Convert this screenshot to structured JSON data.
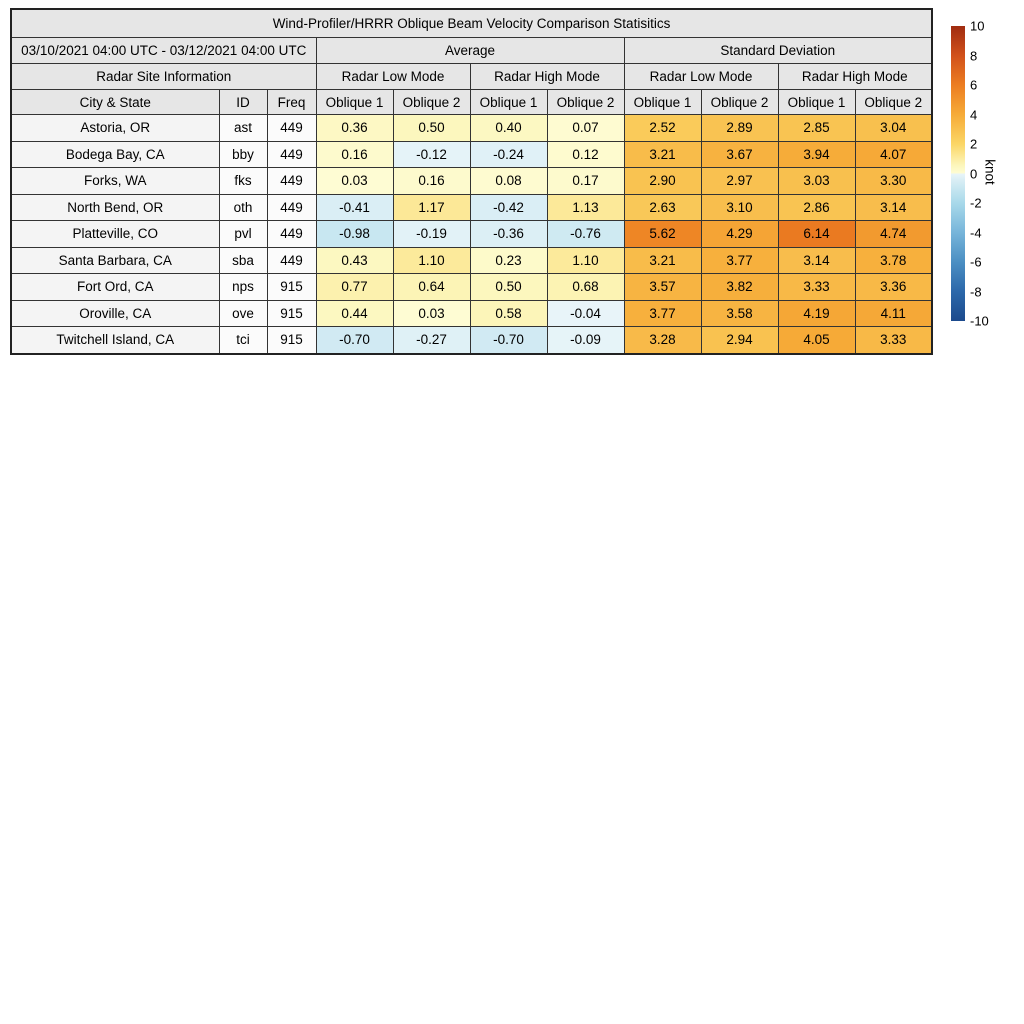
{
  "chart_data": {
    "type": "heatmap-table",
    "title": "Wind-Profiler/HRRR Oblique Beam Velocity Comparison Statisitics",
    "date_range": "03/10/2021 04:00 UTC - 03/12/2021 04:00 UTC",
    "group_average": "Average",
    "group_std": "Standard Deviation",
    "site_info_label": "Radar Site Information",
    "mode_labels": [
      "Radar Low Mode",
      "Radar High Mode",
      "Radar Low Mode",
      "Radar High Mode"
    ],
    "columns": [
      "City & State",
      "ID",
      "Freq"
    ],
    "oblique_labels": [
      "Oblique 1",
      "Oblique 2"
    ],
    "value_column_order": [
      "Average Low Oblique 1",
      "Average Low Oblique 2",
      "Average High Oblique 1",
      "Average High Oblique 2",
      "StdDev Low Oblique 1",
      "StdDev Low Oblique 2",
      "StdDev High Oblique 1",
      "StdDev High Oblique 2"
    ],
    "rows": [
      {
        "city": "Astoria, OR",
        "id": "ast",
        "freq": "449",
        "values": [
          0.36,
          0.5,
          0.4,
          0.07,
          2.52,
          2.89,
          2.85,
          3.04
        ]
      },
      {
        "city": "Bodega Bay, CA",
        "id": "bby",
        "freq": "449",
        "values": [
          0.16,
          -0.12,
          -0.24,
          0.12,
          3.21,
          3.67,
          3.94,
          4.07
        ]
      },
      {
        "city": "Forks, WA",
        "id": "fks",
        "freq": "449",
        "values": [
          0.03,
          0.16,
          0.08,
          0.17,
          2.9,
          2.97,
          3.03,
          3.3
        ]
      },
      {
        "city": "North Bend, OR",
        "id": "oth",
        "freq": "449",
        "values": [
          -0.41,
          1.17,
          -0.42,
          1.13,
          2.63,
          3.1,
          2.86,
          3.14
        ]
      },
      {
        "city": "Platteville, CO",
        "id": "pvl",
        "freq": "449",
        "values": [
          -0.98,
          -0.19,
          -0.36,
          -0.76,
          5.62,
          4.29,
          6.14,
          4.74
        ]
      },
      {
        "city": "Santa Barbara, CA",
        "id": "sba",
        "freq": "449",
        "values": [
          0.43,
          1.1,
          0.23,
          1.1,
          3.21,
          3.77,
          3.14,
          3.78
        ]
      },
      {
        "city": "Fort Ord, CA",
        "id": "nps",
        "freq": "915",
        "values": [
          0.77,
          0.64,
          0.5,
          0.68,
          3.57,
          3.82,
          3.33,
          3.36
        ]
      },
      {
        "city": "Oroville, CA",
        "id": "ove",
        "freq": "915",
        "values": [
          0.44,
          0.03,
          0.58,
          -0.04,
          3.77,
          3.58,
          4.19,
          4.11
        ]
      },
      {
        "city": "Twitchell Island, CA",
        "id": "tci",
        "freq": "915",
        "values": [
          -0.7,
          -0.27,
          -0.7,
          -0.09,
          3.28,
          2.94,
          4.05,
          3.33
        ]
      }
    ],
    "colorbar": {
      "unit": "knot",
      "min": -10,
      "max": 10,
      "ticks": [
        10,
        8,
        6,
        4,
        2,
        0,
        -2,
        -4,
        -6,
        -8,
        -10
      ],
      "positive_anchors": [
        [
          0,
          "#fefcd4"
        ],
        [
          0.5,
          "#fcf7be"
        ],
        [
          2,
          "#fbd666"
        ],
        [
          4,
          "#f6ab38"
        ],
        [
          6,
          "#ec7d21"
        ],
        [
          8,
          "#d1511b"
        ],
        [
          10,
          "#a02c10"
        ]
      ],
      "negative_anchors": [
        [
          0,
          "#e9f5f9"
        ],
        [
          -0.5,
          "#d7edf4"
        ],
        [
          -2,
          "#a8d9ea"
        ],
        [
          -4,
          "#77b5da"
        ],
        [
          -6,
          "#4b8fc3"
        ],
        [
          -8,
          "#2c68aa"
        ],
        [
          -10,
          "#1c4a8d"
        ]
      ]
    },
    "style": {
      "header_bg": "#e6e6e6",
      "border_color": "#333333"
    }
  }
}
